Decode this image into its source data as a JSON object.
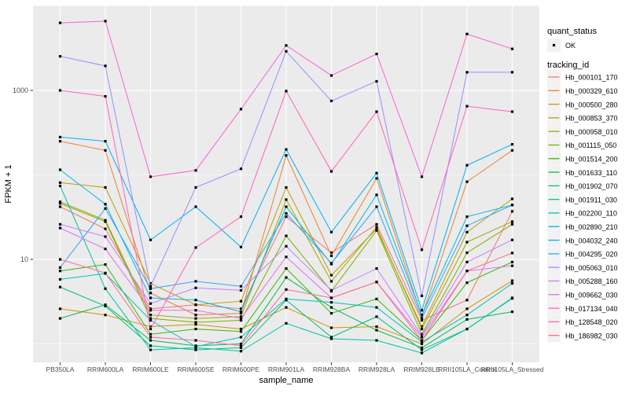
{
  "figure": {
    "panel_bg": "#EBEBEB",
    "grid_color": "#FFFFFF",
    "tick_color": "#333333",
    "axis_text_color": "#4D4D4D",
    "point_color": "#000000",
    "legend_key_bg": "#F2F2F2"
  },
  "legend": {
    "quant_status_title": "quant_status",
    "ok_label": "OK",
    "tracking_id_title": "tracking_id"
  },
  "chart_data": {
    "type": "line",
    "title": "",
    "xlabel": "sample_name",
    "ylabel": "FPKM + 1",
    "y_scale": "log10",
    "y_major_ticks": [
      10,
      1000
    ],
    "y_major_tick_labels": [
      "10",
      "1000"
    ],
    "y_minor_ticks": [
      1,
      100,
      10000
    ],
    "ylim_approx": [
      0.7,
      9000
    ],
    "grid": "on",
    "legend_position": "right",
    "point_marker": "small black square (quant_status OK)",
    "categories": [
      "PB350LA",
      "RRIM600LA",
      "RRIM600LE",
      "RRIM600SE",
      "RRIM600PE",
      "RRIM901LA",
      "RRIM928BA",
      "RRIM928LA",
      "RRIM928LE",
      "RRII105LA_Control",
      "RRII105LA_Stressed"
    ],
    "series": [
      {
        "name": "Hb_000101_170",
        "color": "#F8766D",
        "values": [
          42,
          23,
          2.6,
          2.9,
          2.6,
          32,
          12,
          26,
          1.9,
          3.3,
          37
        ]
      },
      {
        "name": "Hb_000329_610",
        "color": "#EA8331",
        "values": [
          250,
          195,
          4.0,
          2.2,
          2.3,
          170,
          11,
          91,
          2.1,
          83,
          195
        ]
      },
      {
        "name": "Hb_000500_280",
        "color": "#D89000",
        "values": [
          2.6,
          2.2,
          1.6,
          1.7,
          1.5,
          2.7,
          1.55,
          1.6,
          1.0,
          2.6,
          5.6
        ]
      },
      {
        "name": "Hb_000853_370",
        "color": "#C09B00",
        "values": [
          81,
          71,
          5.2,
          2.9,
          3.2,
          71,
          6.5,
          23,
          1.6,
          21,
          52
        ]
      },
      {
        "name": "Hb_000958_010",
        "color": "#A3A500",
        "values": [
          48,
          29,
          2.2,
          2.0,
          2.1,
          51,
          5.5,
          24,
          1.5,
          16,
          28
        ]
      },
      {
        "name": "Hb_001115_050",
        "color": "#7CAE00",
        "values": [
          46,
          28,
          2.0,
          1.8,
          1.9,
          19,
          4.2,
          22,
          1.3,
          12,
          26
        ]
      },
      {
        "name": "Hb_001514_200",
        "color": "#39B600",
        "values": [
          7.3,
          8.7,
          1.3,
          1.5,
          1.4,
          7.8,
          2.3,
          3.4,
          1.1,
          5.3,
          9.3
        ]
      },
      {
        "name": "Hb_001633_110",
        "color": "#00BB4E",
        "values": [
          2.0,
          2.9,
          1.1,
          0.95,
          1.0,
          6.1,
          2.7,
          1.45,
          0.9,
          1.95,
          2.4
        ]
      },
      {
        "name": "Hb_001902_070",
        "color": "#00BF7D",
        "values": [
          4.7,
          2.8,
          0.95,
          0.85,
          0.9,
          3.3,
          1.2,
          2.1,
          0.85,
          1.5,
          3.5
        ]
      },
      {
        "name": "Hb_001911_030",
        "color": "#00C1A3",
        "values": [
          74,
          4.5,
          0.85,
          0.9,
          0.82,
          1.75,
          1.15,
          1.1,
          0.78,
          1.5,
          3.45
        ]
      },
      {
        "name": "Hb_002200_110",
        "color": "#00BFC4",
        "values": [
          5.8,
          6.8,
          1.9,
          0.93,
          1.2,
          3.4,
          3.1,
          2.7,
          1.05,
          2.2,
          5.2
        ]
      },
      {
        "name": "Hb_002890_210",
        "color": "#00BAE0",
        "values": [
          115,
          45,
          3.5,
          3.3,
          2.4,
          42,
          8.8,
          58,
          2.2,
          32,
          44
        ]
      },
      {
        "name": "Hb_004032_240",
        "color": "#00B0F6",
        "values": [
          280,
          250,
          17,
          42,
          14,
          200,
          21,
          105,
          2.5,
          130,
          230
        ]
      },
      {
        "name": "Hb_004295_020",
        "color": "#35A2FF",
        "values": [
          8.0,
          40,
          4.5,
          5.5,
          4.8,
          35,
          9.0,
          42,
          2.0,
          25,
          44
        ]
      },
      {
        "name": "Hb_005063_010",
        "color": "#9590FF",
        "values": [
          2530,
          1950,
          4.8,
          71,
          118,
          2900,
          750,
          1280,
          3.7,
          1640,
          1640
        ]
      },
      {
        "name": "Hb_005288_160",
        "color": "#C77CFF",
        "values": [
          26,
          18.6,
          3.0,
          4.6,
          4.3,
          14.3,
          4.3,
          7.8,
          1.25,
          9.3,
          17
        ]
      },
      {
        "name": "Hb_009662_030",
        "color": "#E76BF3",
        "values": [
          23.5,
          13.3,
          2.5,
          2.5,
          2.0,
          10.7,
          3.5,
          5.4,
          1.2,
          7.3,
          8.4
        ]
      },
      {
        "name": "Hb_017134_040",
        "color": "#FA62DB",
        "values": [
          6300,
          6600,
          95,
          113,
          600,
          3400,
          1500,
          2700,
          95,
          4650,
          3100
        ]
      },
      {
        "name": "Hb_128548_020",
        "color": "#FF62BC",
        "values": [
          1000,
          850,
          1.5,
          13.8,
          32,
          980,
          110,
          560,
          13,
          650,
          560
        ]
      },
      {
        "name": "Hb_186982_030",
        "color": "#FF6A98",
        "values": [
          10,
          6.9,
          1.2,
          1.1,
          0.95,
          4.4,
          3.5,
          5.4,
          1.1,
          7.3,
          11.9
        ]
      }
    ]
  }
}
